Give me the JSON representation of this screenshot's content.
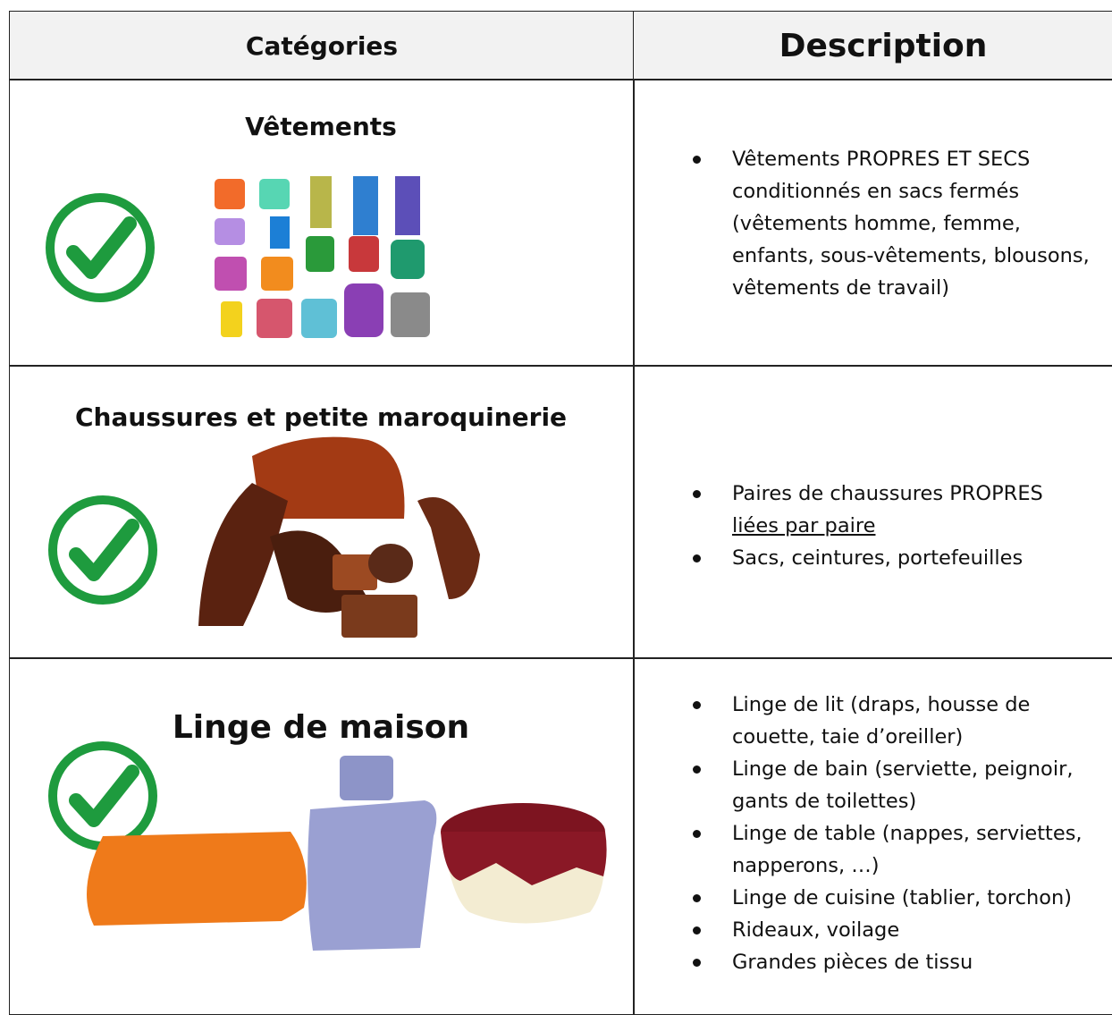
{
  "table": {
    "header": [
      "Catégories",
      "Description"
    ],
    "rows": [
      {
        "category": "Vêtements",
        "items": [
          {
            "text": "Vêtements PROPRES ET SECS conditionnés en sacs fermés (vêtements homme, femme, enfants, sous-vêtements, blousons, vêtements de travail)"
          }
        ]
      },
      {
        "category": "Chaussures et petite maroquinerie",
        "items": [
          {
            "text": "Paires de chaussures PROPRES",
            "underlined": "liées par paire"
          },
          {
            "text": "Sacs, ceintures, portefeuilles"
          }
        ]
      },
      {
        "category": "Linge de maison",
        "items": [
          {
            "text": "Linge de lit (draps, housse de couette, taie d’oreiller)"
          },
          {
            "text": "Linge de bain (serviette, peignoir, gants de toilettes)"
          },
          {
            "text": "Linge de table (nappes, serviettes, napperons, …)"
          },
          {
            "text": "Linge de cuisine (tablier, torchon)"
          },
          {
            "text": "Rideaux, voilage"
          },
          {
            "text": "Grandes pièces de tissu"
          }
        ]
      }
    ]
  }
}
